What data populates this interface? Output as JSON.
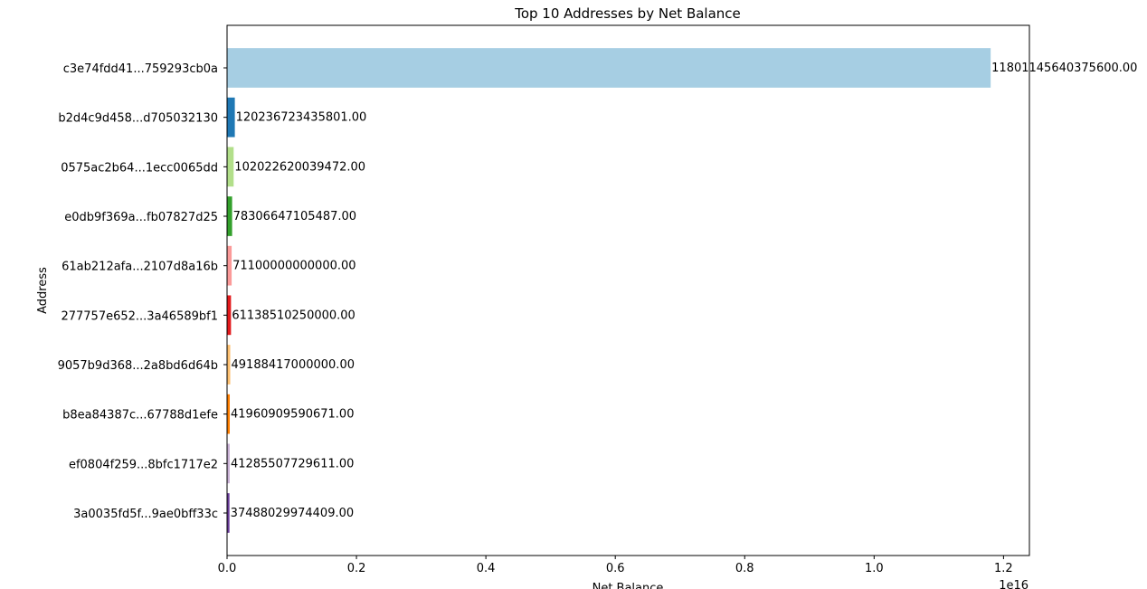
{
  "chart_data": {
    "type": "barh",
    "title": "Top 10 Addresses by Net Balance",
    "x_label": "Net Balance",
    "y_label": "Address",
    "x_offset_label": "1e16",
    "categories": [
      "c3e74fdd41...759293cb0a",
      "b2d4c9d458...d705032130",
      "0575ac2b64...1ecc0065dd",
      "e0db9f369a...fb07827d25",
      "61ab212afa...2107d8a16b",
      "277757e652...3a46589bf1",
      "9057b9d368...2a8bd6d64b",
      "b8ea84387c...67788d1efe",
      "ef0804f259...8bfc1717e2",
      "3a0035fd5f...9ae0bff33c"
    ],
    "values": [
      11801145640375600,
      120236723435801,
      102022620039472,
      78306647105487,
      71100000000000,
      61138510250000,
      49188417000000,
      41960909590671,
      41285507729611,
      37488029974409
    ],
    "value_labels": [
      "11801145640375600.00",
      "120236723435801.00",
      "102022620039472.00",
      "78306647105487.00",
      "71100000000000.00",
      "61138510250000.00",
      "49188417000000.00",
      "41960909590671.00",
      "41285507729611.00",
      "37488029974409.00"
    ],
    "colors": [
      "#a6cee3",
      "#1f78b4",
      "#b2df8a",
      "#33a02c",
      "#fb9a99",
      "#e31a1c",
      "#fdbf6f",
      "#ff7f00",
      "#cab2d6",
      "#6a3d9a"
    ],
    "xlim": [
      0,
      12400000000000000
    ],
    "xticks": [
      {
        "value": 0,
        "label": "0.0"
      },
      {
        "value": 2000000000000000,
        "label": "0.2"
      },
      {
        "value": 4000000000000000,
        "label": "0.4"
      },
      {
        "value": 6000000000000000,
        "label": "0.6"
      },
      {
        "value": 8000000000000000,
        "label": "0.8"
      },
      {
        "value": 10000000000000000,
        "label": "1.0"
      },
      {
        "value": 12000000000000000,
        "label": "1.2"
      }
    ],
    "grid": false
  }
}
